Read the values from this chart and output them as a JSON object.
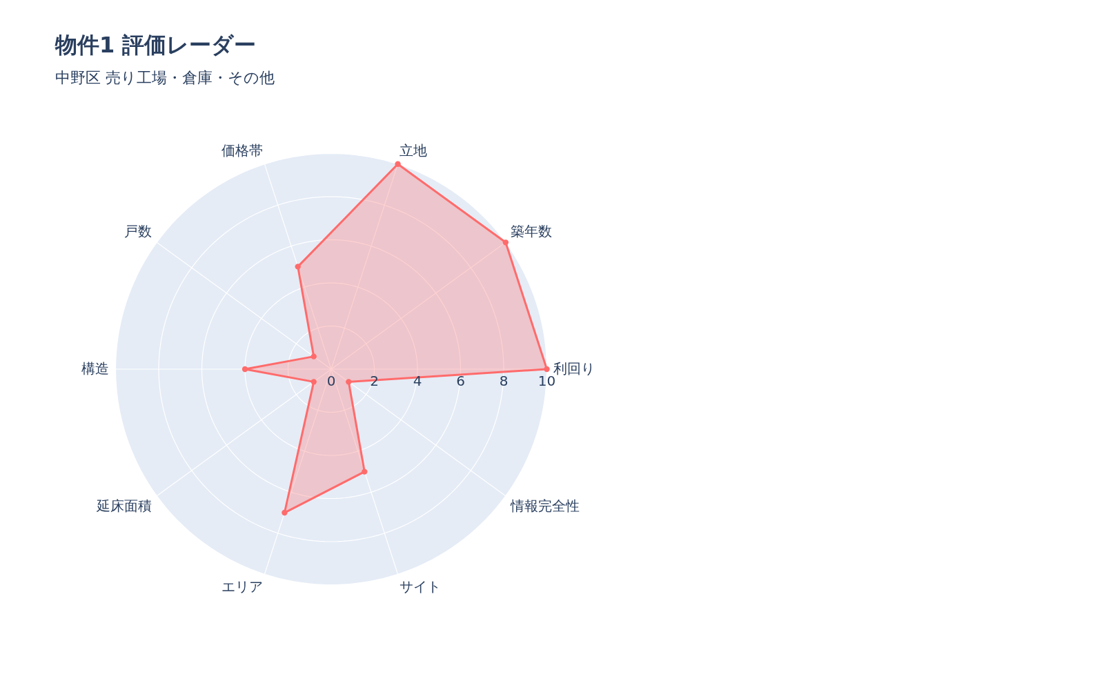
{
  "chart_data": {
    "type": "radar",
    "title": "物件1 評価レーダー",
    "subtitle": "中野区 売り工場・倉庫・その他",
    "categories": [
      "立地",
      "築年数",
      "利回り",
      "情報完全性",
      "サイト",
      "エリア",
      "延床面積",
      "構造",
      "戸数",
      "価格帯"
    ],
    "series": [
      {
        "color": "#ff6b6b",
        "values": [
          10,
          10,
          10,
          1,
          5,
          7,
          1,
          4,
          1,
          5
        ]
      }
    ],
    "ylim": [
      0,
      10
    ],
    "yticks": [
      0,
      2,
      4,
      6,
      8,
      10
    ],
    "marker": "circle",
    "grid": true
  }
}
